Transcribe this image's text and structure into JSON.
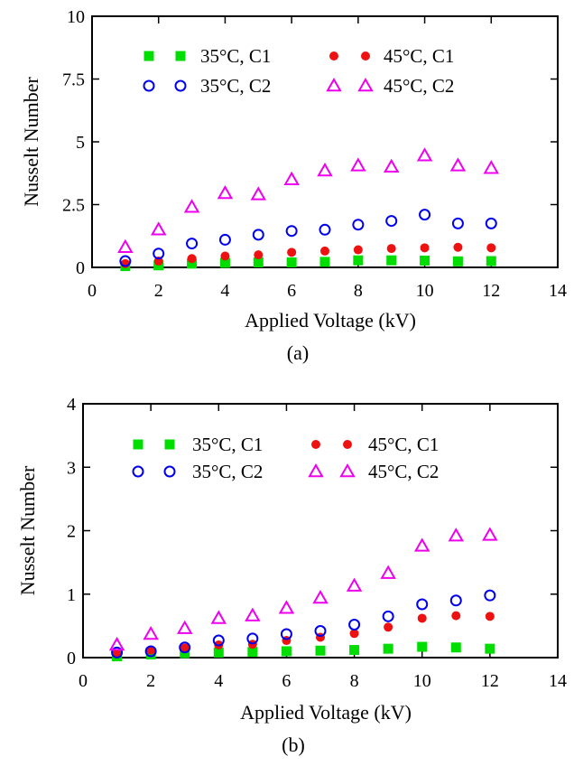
{
  "chart_data": [
    {
      "type": "scatter",
      "panel_label": "(a)",
      "xlabel": "Applied Voltage (kV)",
      "ylabel": "Nusselt Number",
      "xlim": [
        0,
        14
      ],
      "ylim": [
        0,
        10
      ],
      "xticks": [
        "0",
        "2",
        "4",
        "6",
        "8",
        "10",
        "12",
        "14"
      ],
      "yticks": [
        "0",
        "2.5",
        "5",
        "7.5",
        "10"
      ],
      "grid": false,
      "legend_placement": "top-center",
      "x": [
        1,
        2,
        3,
        4,
        5,
        6,
        7,
        8,
        9,
        10,
        11,
        12
      ],
      "series": [
        {
          "name": "35°C, C1",
          "marker": "square-filled",
          "color": "#00dd00",
          "values": [
            0.05,
            0.08,
            0.15,
            0.18,
            0.2,
            0.2,
            0.22,
            0.28,
            0.28,
            0.27,
            0.24,
            0.25
          ]
        },
        {
          "name": "45°C, C1",
          "marker": "circle-filled",
          "color": "#ee1111",
          "values": [
            0.15,
            0.25,
            0.35,
            0.45,
            0.5,
            0.6,
            0.65,
            0.7,
            0.75,
            0.78,
            0.8,
            0.78
          ]
        },
        {
          "name": "35°C, C2",
          "marker": "circle-open",
          "color": "#0000ee",
          "values": [
            0.25,
            0.55,
            0.95,
            1.1,
            1.3,
            1.45,
            1.5,
            1.7,
            1.85,
            2.1,
            1.75,
            1.75
          ]
        },
        {
          "name": "45°C, C2",
          "marker": "triangle-open",
          "color": "#ee00ee",
          "values": [
            0.8,
            1.5,
            2.4,
            2.95,
            2.9,
            3.5,
            3.85,
            4.05,
            4.0,
            4.45,
            4.05,
            3.95
          ]
        }
      ]
    },
    {
      "type": "scatter",
      "panel_label": "(b)",
      "xlabel": "Applied Voltage (kV)",
      "ylabel": "Nusselt Number",
      "xlim": [
        0,
        14
      ],
      "ylim": [
        0,
        4
      ],
      "xticks": [
        "0",
        "2",
        "4",
        "6",
        "8",
        "10",
        "12",
        "14"
      ],
      "yticks": [
        "0",
        "1",
        "2",
        "3",
        "4"
      ],
      "grid": false,
      "legend_placement": "top-center",
      "x": [
        1,
        2,
        3,
        4,
        5,
        6,
        7,
        8,
        9,
        10,
        11,
        12
      ],
      "series": [
        {
          "name": "35°C, C1",
          "marker": "square-filled",
          "color": "#00dd00",
          "values": [
            0.02,
            0.05,
            0.07,
            0.08,
            0.09,
            0.1,
            0.11,
            0.12,
            0.14,
            0.17,
            0.16,
            0.14
          ]
        },
        {
          "name": "45°C, C1",
          "marker": "circle-filled",
          "color": "#ee1111",
          "values": [
            0.06,
            0.12,
            0.15,
            0.2,
            0.21,
            0.27,
            0.32,
            0.38,
            0.48,
            0.62,
            0.66,
            0.65
          ]
        },
        {
          "name": "35°C, C2",
          "marker": "circle-open",
          "color": "#0000ee",
          "values": [
            0.08,
            0.1,
            0.16,
            0.27,
            0.3,
            0.37,
            0.42,
            0.52,
            0.65,
            0.84,
            0.9,
            0.98
          ]
        },
        {
          "name": "45°C, C2",
          "marker": "triangle-open",
          "color": "#ee00ee",
          "values": [
            0.2,
            0.37,
            0.46,
            0.62,
            0.66,
            0.78,
            0.94,
            1.13,
            1.33,
            1.76,
            1.92,
            1.93
          ]
        }
      ]
    }
  ]
}
